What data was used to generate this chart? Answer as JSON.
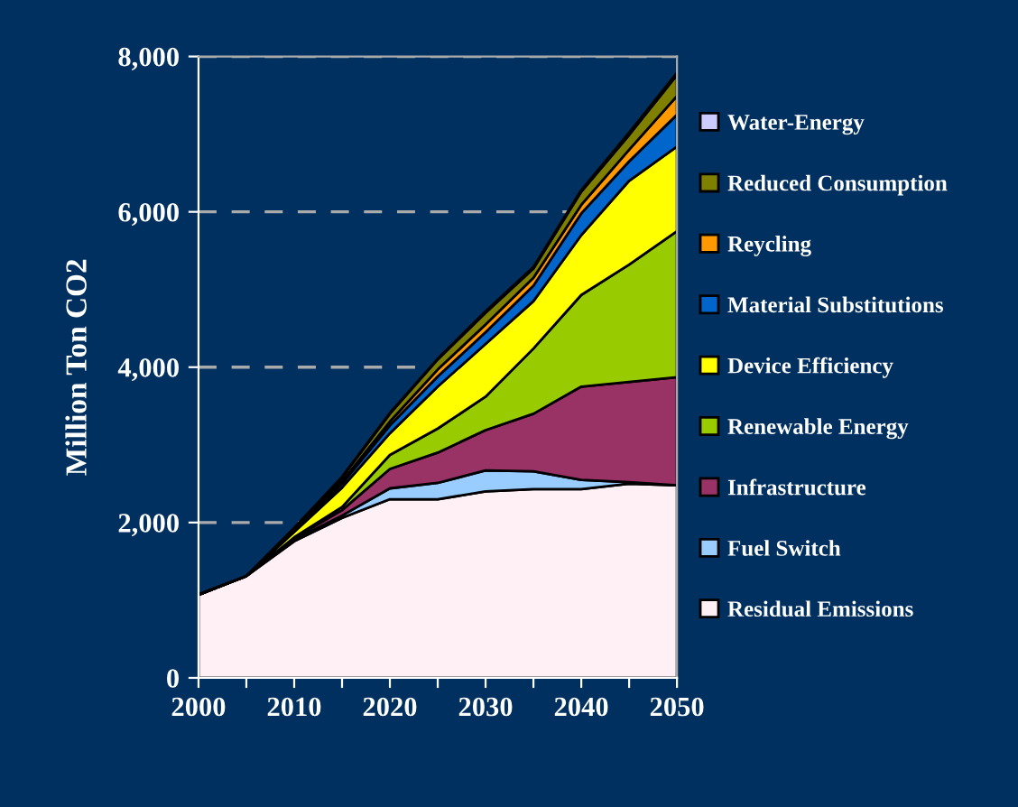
{
  "chart_data": {
    "type": "area",
    "stacked": true,
    "ylabel": "Million Ton CO2",
    "x": [
      2000,
      2005,
      2010,
      2015,
      2020,
      2025,
      2030,
      2035,
      2040,
      2045,
      2050
    ],
    "series": [
      {
        "name": "Residual Emissions",
        "color": "#fff0f5",
        "values": [
          1070,
          1310,
          1760,
          2060,
          2300,
          2300,
          2400,
          2430,
          2430,
          2500,
          2480
        ]
      },
      {
        "name": "Fuel Switch",
        "color": "#99ccff",
        "values": [
          0,
          0,
          20,
          30,
          140,
          210,
          270,
          230,
          120,
          20,
          0
        ]
      },
      {
        "name": "Infrastructure",
        "color": "#993366",
        "values": [
          0,
          0,
          20,
          70,
          250,
          390,
          520,
          740,
          1200,
          1290,
          1390
        ]
      },
      {
        "name": "Renewable Energy",
        "color": "#99cc00",
        "values": [
          0,
          0,
          10,
          40,
          180,
          310,
          430,
          840,
          1180,
          1510,
          1880
        ]
      },
      {
        "name": "Device Efficiency",
        "color": "#ffff00",
        "values": [
          0,
          0,
          70,
          250,
          280,
          540,
          680,
          610,
          770,
          1080,
          1090
        ]
      },
      {
        "name": "Material Substitutions",
        "color": "#0066cc",
        "values": [
          0,
          0,
          20,
          50,
          100,
          130,
          150,
          200,
          280,
          250,
          410
        ]
      },
      {
        "name": "Reycling",
        "color": "#ff9900",
        "values": [
          0,
          0,
          10,
          30,
          50,
          90,
          100,
          100,
          110,
          150,
          240
        ]
      },
      {
        "name": "Reduced Consumption",
        "color": "#808000",
        "values": [
          0,
          0,
          20,
          50,
          100,
          130,
          150,
          120,
          170,
          190,
          270
        ]
      },
      {
        "name": "Water-Energy",
        "color": "#ccccff",
        "values": [
          0,
          0,
          0,
          10,
          10,
          10,
          20,
          20,
          20,
          30,
          30
        ]
      }
    ],
    "xlim": [
      2000,
      2050
    ],
    "xticks": [
      2000,
      {
        "value": 2005,
        "label": null
      },
      2010,
      {
        "value": 2015,
        "label": null
      },
      2020,
      {
        "value": 2025,
        "label": null
      },
      2030,
      {
        "value": 2035,
        "label": null
      },
      2040,
      {
        "value": 2045,
        "label": null
      },
      2050
    ],
    "ylim": [
      0,
      8000
    ],
    "yticks": [
      0,
      {
        "value": 2000,
        "label": "2,000"
      },
      {
        "value": 4000,
        "label": "4,000"
      },
      {
        "value": 6000,
        "label": "6,000"
      },
      {
        "value": 8000,
        "label": "8,000"
      }
    ],
    "grid": "y",
    "legend": "right"
  }
}
